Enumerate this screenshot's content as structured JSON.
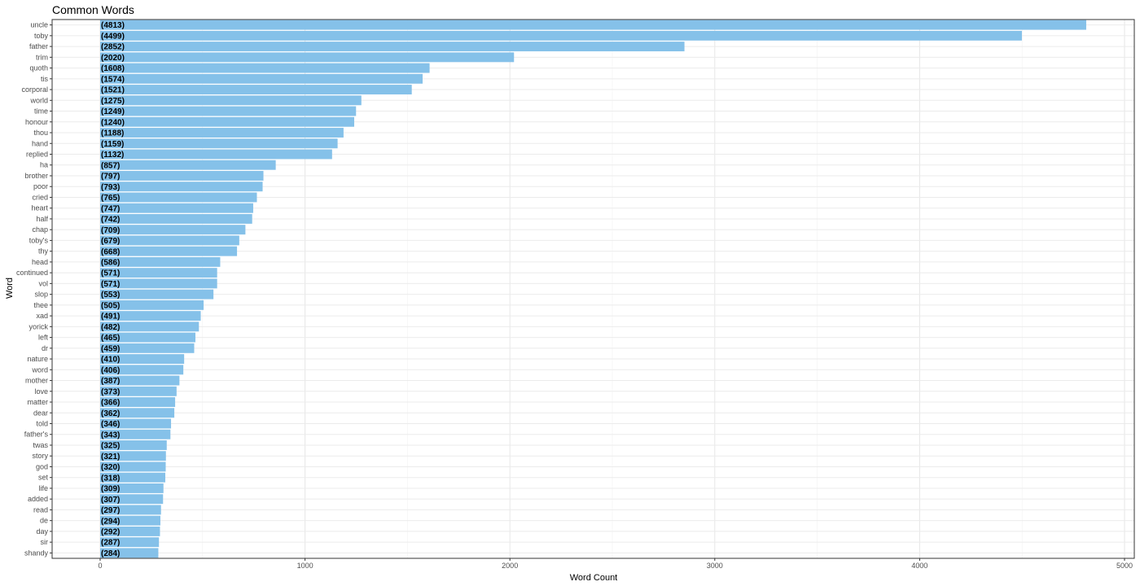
{
  "chart_data": {
    "type": "bar",
    "orientation": "horizontal",
    "title": "Common Words",
    "xlabel": "Word Count",
    "ylabel": "Word",
    "xlim": [
      0,
      5000
    ],
    "x_ticks": [
      0,
      1000,
      2000,
      3000,
      4000,
      5000
    ],
    "grid": true,
    "bar_color": "#85c1e9",
    "categories": [
      "uncle",
      "toby",
      "father",
      "trim",
      "quoth",
      "tis",
      "corporal",
      "world",
      "time",
      "honour",
      "thou",
      "hand",
      "replied",
      "ha",
      "brother",
      "poor",
      "cried",
      "heart",
      "half",
      "chap",
      "toby's",
      "thy",
      "head",
      "continued",
      "vol",
      "slop",
      "thee",
      "xad",
      "yorick",
      "left",
      "dr",
      "nature",
      "word",
      "mother",
      "love",
      "matter",
      "dear",
      "told",
      "father's",
      "twas",
      "story",
      "god",
      "set",
      "life",
      "added",
      "read",
      "de",
      "day",
      "sir",
      "shandy"
    ],
    "values": [
      4813,
      4499,
      2852,
      2020,
      1608,
      1574,
      1521,
      1275,
      1249,
      1240,
      1188,
      1159,
      1132,
      857,
      797,
      793,
      765,
      747,
      742,
      709,
      679,
      668,
      586,
      571,
      571,
      553,
      505,
      491,
      482,
      465,
      459,
      410,
      406,
      387,
      373,
      366,
      362,
      346,
      343,
      325,
      321,
      320,
      318,
      309,
      307,
      297,
      294,
      292,
      287,
      284
    ],
    "data_labels": [
      "(4813)",
      "(4499)",
      "(2852)",
      "(2020)",
      "(1608)",
      "(1574)",
      "(1521)",
      "(1275)",
      "(1249)",
      "(1240)",
      "(1188)",
      "(1159)",
      "(1132)",
      "(857)",
      "(797)",
      "(793)",
      "(765)",
      "(747)",
      "(742)",
      "(709)",
      "(679)",
      "(668)",
      "(586)",
      "(571)",
      "(571)",
      "(553)",
      "(505)",
      "(491)",
      "(482)",
      "(465)",
      "(459)",
      "(410)",
      "(406)",
      "(387)",
      "(373)",
      "(366)",
      "(362)",
      "(346)",
      "(343)",
      "(325)",
      "(321)",
      "(320)",
      "(318)",
      "(309)",
      "(307)",
      "(297)",
      "(294)",
      "(292)",
      "(287)",
      "(284)"
    ]
  }
}
